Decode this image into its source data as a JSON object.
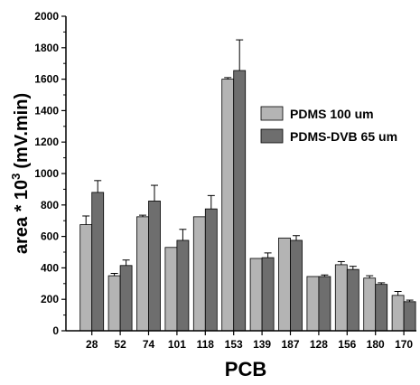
{
  "chart_data": {
    "type": "bar",
    "title": "",
    "xlabel": "PCB",
    "ylabel_main": "area * 10",
    "ylabel_exp": "3",
    "ylabel_unit": "(mV.min)",
    "ylim": [
      0,
      2000
    ],
    "yticks": [
      "0",
      "200",
      "400",
      "600",
      "800",
      "1000",
      "1200",
      "1400",
      "1600",
      "1800",
      "2000"
    ],
    "ytick_values": [
      0,
      200,
      400,
      600,
      800,
      1000,
      1200,
      1400,
      1600,
      1800,
      2000
    ],
    "categories": [
      "28",
      "52",
      "74",
      "101",
      "118",
      "153",
      "139",
      "187",
      "128",
      "156",
      "180",
      "170"
    ],
    "series": [
      {
        "name": "PDMS 100 um",
        "color": "#b4b4b4",
        "values": [
          675,
          350,
          725,
          530,
          725,
          1600,
          460,
          590,
          345,
          420,
          335,
          225
        ],
        "errors": [
          55,
          15,
          10,
          0,
          0,
          10,
          0,
          0,
          0,
          20,
          15,
          25
        ]
      },
      {
        "name": "PDMS-DVB 65 um",
        "color": "#6e6e6e",
        "values": [
          880,
          415,
          825,
          575,
          775,
          1655,
          465,
          575,
          345,
          390,
          295,
          185
        ],
        "errors": [
          75,
          35,
          100,
          70,
          85,
          195,
          30,
          30,
          10,
          20,
          10,
          10
        ]
      }
    ],
    "legend_position": "right"
  }
}
